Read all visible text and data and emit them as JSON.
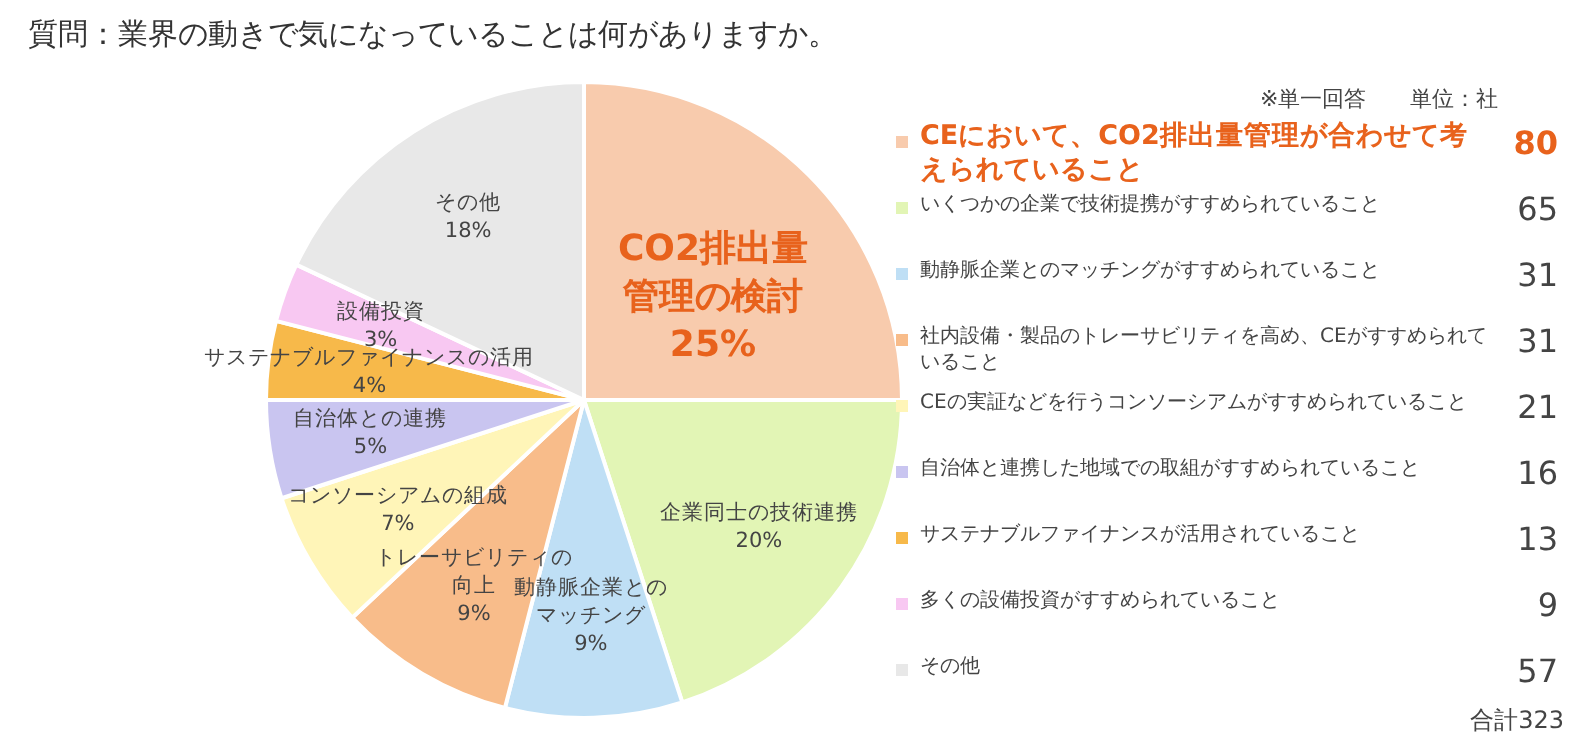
{
  "chart_data": [
    {
      "type": "pie",
      "title": "質問：業界の動きで気になっていることは何がありますか。",
      "categories": [
        "CO2排出量管理の検討",
        "企業同士の技術連携",
        "動静脈企業とのマッチング",
        "トレーサビリティの向上",
        "コンソーシアムの組成",
        "自治体との連携",
        "サステナブルファイナンスの活用",
        "設備投資",
        "その他"
      ],
      "values": [
        25,
        20,
        9,
        9,
        7,
        5,
        4,
        3,
        18
      ],
      "value_labels": [
        "25%",
        "20%",
        "9%",
        "9%",
        "7%",
        "5%",
        "4%",
        "3%",
        "18%"
      ],
      "colors": [
        "#f8cbad",
        "#e2f5b5",
        "#bfdff5",
        "#f8bc8a",
        "#fff5b8",
        "#c9c5f0",
        "#f7b94a",
        "#f8c8f2",
        "#e8e8e8"
      ]
    },
    {
      "type": "other",
      "categories": [
        "CEにおいて、CO2排出量管理が合わせて考えられていること",
        "いくつかの企業で技術提携がすすめられていること",
        "動静脈企業とのマッチングがすすめられていること",
        "社内設備・製品のトレーサビリティを高め、CEがすすめられていること",
        "CEの実証などを行うコンソーシアムがすすめられていること",
        "自治体と連携した地域での取組がすすめられていること",
        "サステナブルファイナンスが活用されていること",
        "多くの設備投資がすすめられていること",
        "その他"
      ],
      "values": [
        80,
        65,
        31,
        31,
        21,
        16,
        13,
        9,
        57
      ],
      "data_labels": true,
      "colors": [
        "#f8cbad",
        "#e2f5b5",
        "#bfdff5",
        "#f8bc8a",
        "#fff5b8",
        "#c9c5f0",
        "#f7b94a",
        "#f8c8f2",
        "#e8e8e8"
      ],
      "annotations": [
        "※単一回答",
        "単位：社",
        "合計323"
      ]
    }
  ]
}
